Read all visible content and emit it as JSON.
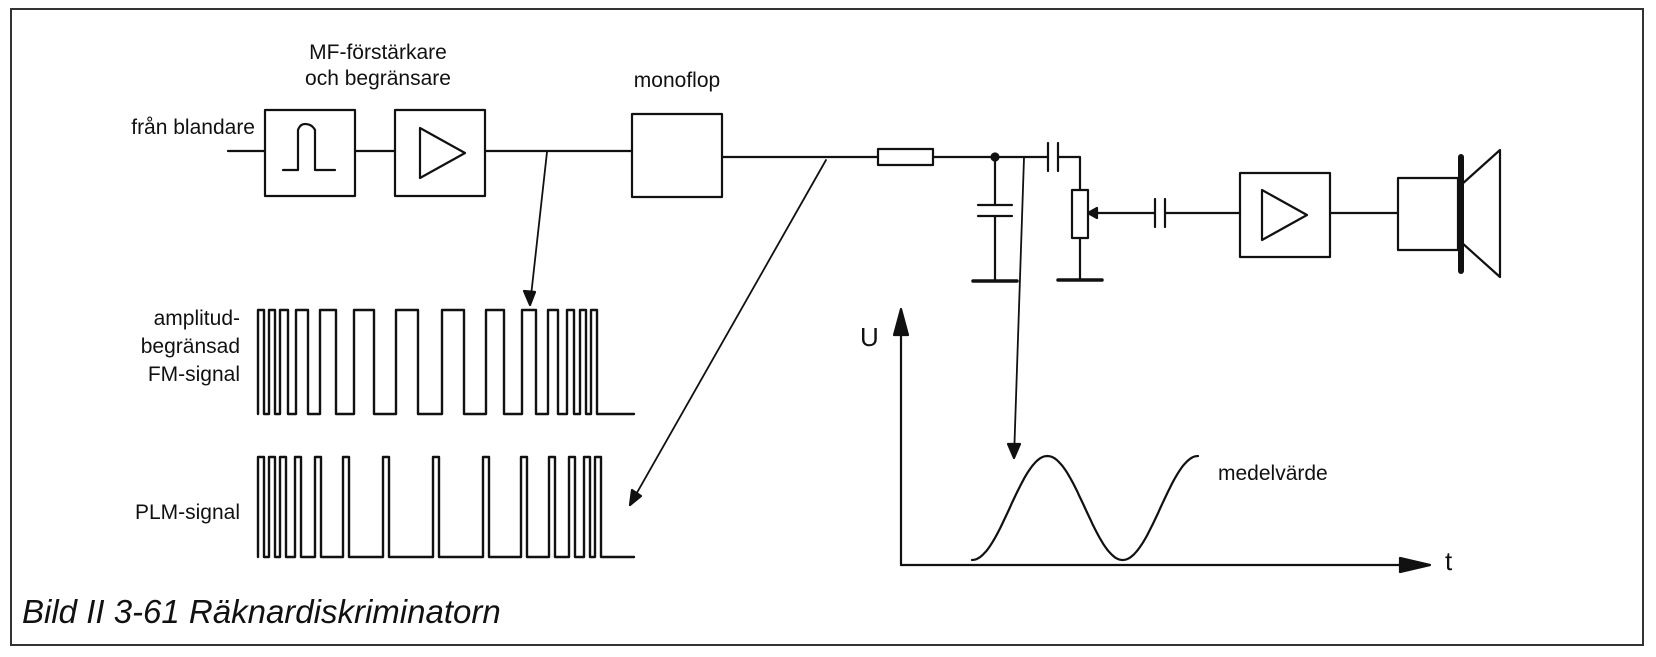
{
  "labels": {
    "if_amp_line1": "MF-förstärkare",
    "if_amp_line2": "och begränsare",
    "monoflop": "monoflop",
    "from_mixer": "från blandare",
    "am_line1": "amplitud-",
    "am_line2": "begränsad",
    "am_line3": "FM-signal",
    "plm": "PLM-signal",
    "axis_u": "U",
    "axis_t": "t",
    "mean": "medelvärde"
  },
  "caption": "Bild II 3-61  Räknardiskriminatorn",
  "colors": {
    "ink": "#111111",
    "frame": "#333333",
    "background": "#ffffff"
  },
  "icons": [
    "limiter-pulse-icon",
    "amplifier-triangle-icon",
    "loudspeaker-icon",
    "capacitor-icon",
    "resistor-icon",
    "potentiometer-icon",
    "ground-icon"
  ]
}
